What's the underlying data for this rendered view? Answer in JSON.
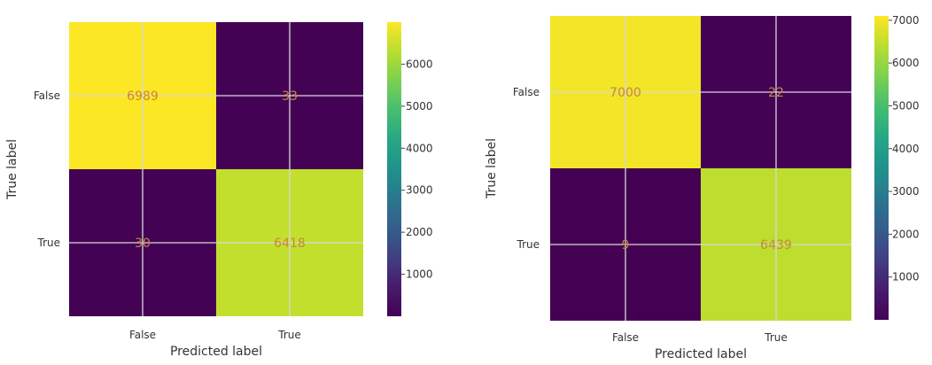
{
  "chart_data": [
    {
      "type": "heatmap",
      "title": "",
      "xlabel": "Predicted label",
      "ylabel": "True label",
      "x_categories": [
        "False",
        "True"
      ],
      "y_categories": [
        "False",
        "True"
      ],
      "values": [
        [
          6989,
          33
        ],
        [
          30,
          6418
        ]
      ],
      "colormap": "viridis",
      "colorbar": {
        "min": 0,
        "max": 7000,
        "ticks": [
          1000,
          2000,
          3000,
          4000,
          5000,
          6000
        ]
      },
      "grid": true
    },
    {
      "type": "heatmap",
      "title": "",
      "xlabel": "Predicted label",
      "ylabel": "True label",
      "x_categories": [
        "False",
        "True"
      ],
      "y_categories": [
        "False",
        "True"
      ],
      "values": [
        [
          7000,
          22
        ],
        [
          9,
          6439
        ]
      ],
      "colormap": "viridis",
      "colorbar": {
        "min": 0,
        "max": 7100,
        "ticks": [
          1000,
          2000,
          3000,
          4000,
          5000,
          6000,
          7000
        ]
      },
      "grid": true
    }
  ],
  "colors": {
    "cell_text": "#c7873f",
    "tick_text": "#333333",
    "grid": "#d8d8d8"
  }
}
